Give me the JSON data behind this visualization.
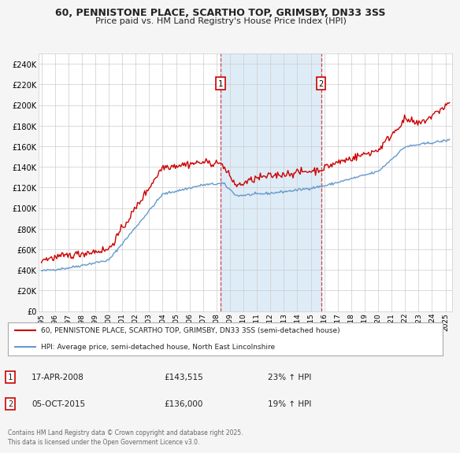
{
  "title_line1": "60, PENNISTONE PLACE, SCARTHO TOP, GRIMSBY, DN33 3SS",
  "title_line2": "Price paid vs. HM Land Registry's House Price Index (HPI)",
  "ytick_vals": [
    0,
    20000,
    40000,
    60000,
    80000,
    100000,
    120000,
    140000,
    160000,
    180000,
    200000,
    220000,
    240000
  ],
  "ylim": [
    0,
    250000
  ],
  "xlim_start": 1994.8,
  "xlim_end": 2025.5,
  "hpi_color": "#6699cc",
  "hpi_fill_color": "#c8dcf0",
  "price_color": "#cc0000",
  "sale1_date": 2008.29,
  "sale1_price": 143515,
  "sale2_date": 2015.76,
  "sale2_price": 136000,
  "vspan_color": "#d0e4f4",
  "legend_line1": "60, PENNISTONE PLACE, SCARTHO TOP, GRIMSBY, DN33 3SS (semi-detached house)",
  "legend_line2": "HPI: Average price, semi-detached house, North East Lincolnshire",
  "annotation1_date": "17-APR-2008",
  "annotation1_price": "£143,515",
  "annotation1_hpi": "23% ↑ HPI",
  "annotation2_date": "05-OCT-2015",
  "annotation2_price": "£136,000",
  "annotation2_hpi": "19% ↑ HPI",
  "footnote": "Contains HM Land Registry data © Crown copyright and database right 2025.\nThis data is licensed under the Open Government Licence v3.0.",
  "bg_color": "#f5f5f5",
  "plot_bg_color": "#ffffff"
}
